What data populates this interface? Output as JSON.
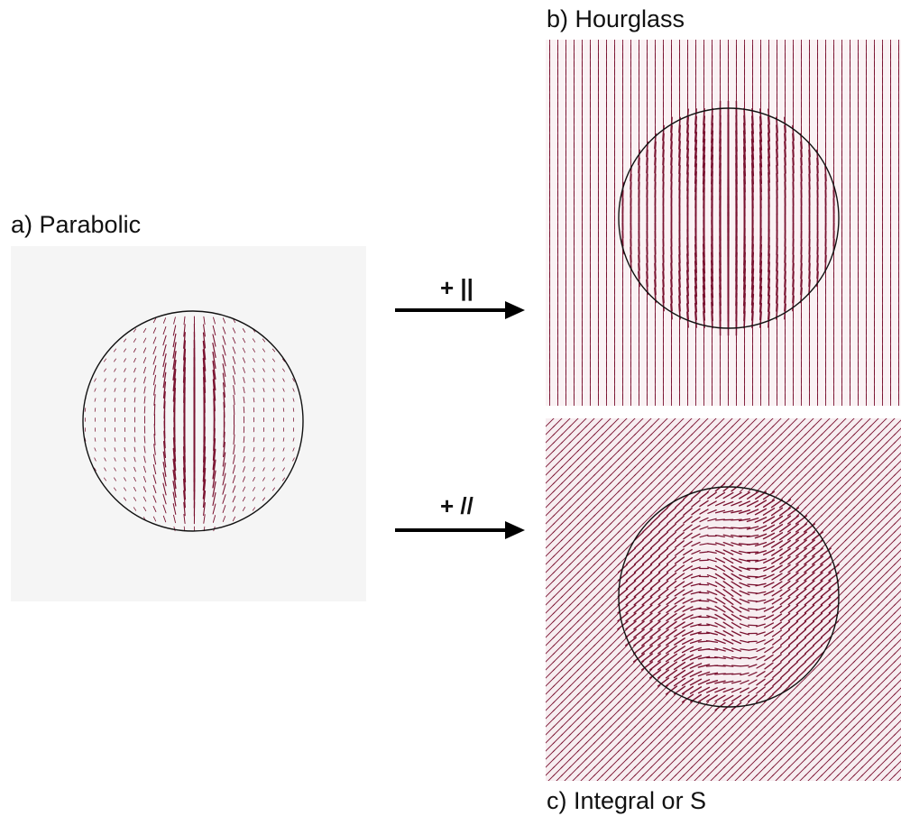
{
  "panels": {
    "a": {
      "label": "a) Parabolic",
      "background": "#f5f5f5"
    },
    "b": {
      "label": "b) Hourglass",
      "background": "#faf2f4"
    },
    "c": {
      "label": "c) Integral or S",
      "background": "#f7eef1"
    }
  },
  "arrows": [
    {
      "label": "+ ||"
    },
    {
      "label": "+ //"
    }
  ],
  "colors": {
    "vector": "#7a1230",
    "circle": "#111111",
    "arrow": "#000000"
  }
}
